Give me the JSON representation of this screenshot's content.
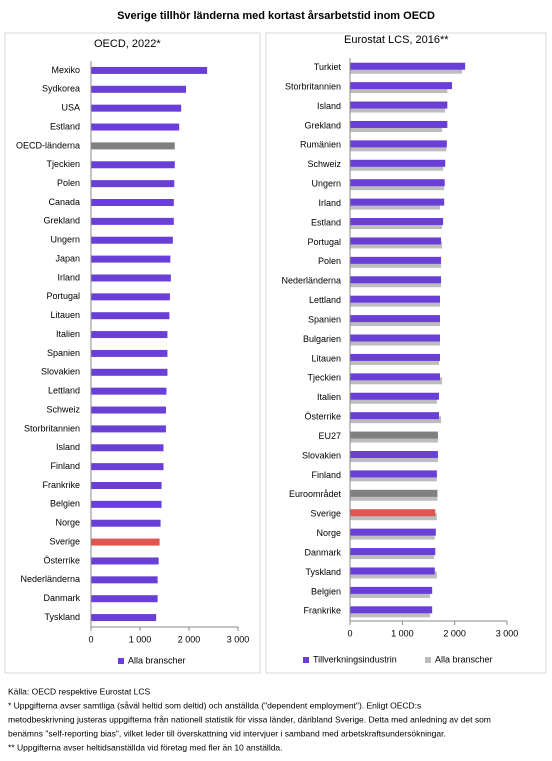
{
  "title": "Sverige tillhör länderna med kortast årsarbetstid inom OECD",
  "notes": [
    "Källa: OECD respektive Eurostat LCS",
    "* Uppgifterna avser samtliga (såväl heltid som deltid) och anställda (\"dependent employment\"). Enligt OECD:s",
    "metodbeskrivning justeras uppgifterna från nationell statistik för vissa länder, däribland Sverige. Detta med anledning av det som",
    "benämns \"self-reporting bias\", vilket leder till överskattning vid intervjuer i samband med arbetskraftsundersökningar.",
    "** Uppgifterna avser heltidsanställda vid företag med fler än 10 anställda."
  ],
  "chart_data": [
    {
      "type": "hbar",
      "subtitle": "OECD, 2022*",
      "categories": [
        "Mexiko",
        "Sydkorea",
        "USA",
        "Estland",
        "OECD-länderna",
        "Tjeckien",
        "Polen",
        "Canada",
        "Grekland",
        "Ungern",
        "Japan",
        "Irland",
        "Portugal",
        "Litauen",
        "Italien",
        "Spanien",
        "Slovakien",
        "Lettland",
        "Schweiz",
        "Storbritannien",
        "Island",
        "Finland",
        "Frankrike",
        "Belgien",
        "Norge",
        "Sverige",
        "Österrike",
        "Nederländerna",
        "Danmark",
        "Tyskland"
      ],
      "series": [
        {
          "name": "Alla branscher",
          "color": "#6a3fd8",
          "colors": [
            "#6a3fd8",
            "#6a3fd8",
            "#6a3fd8",
            "#6a3fd8",
            "#808080",
            "#6a3fd8",
            "#6a3fd8",
            "#6a3fd8",
            "#6a3fd8",
            "#6a3fd8",
            "#6a3fd8",
            "#6a3fd8",
            "#6a3fd8",
            "#6a3fd8",
            "#6a3fd8",
            "#6a3fd8",
            "#6a3fd8",
            "#6a3fd8",
            "#6a3fd8",
            "#6a3fd8",
            "#6a3fd8",
            "#6a3fd8",
            "#6a3fd8",
            "#6a3fd8",
            "#6a3fd8",
            "#e0554f",
            "#6a3fd8",
            "#6a3fd8",
            "#6a3fd8",
            "#6a3fd8"
          ],
          "values": [
            2370,
            1940,
            1840,
            1800,
            1710,
            1710,
            1700,
            1690,
            1690,
            1670,
            1620,
            1630,
            1610,
            1600,
            1560,
            1560,
            1560,
            1540,
            1530,
            1530,
            1480,
            1480,
            1440,
            1440,
            1420,
            1400,
            1380,
            1360,
            1360,
            1330
          ]
        }
      ],
      "xlim": [
        0,
        3000
      ],
      "xticks": [
        0,
        {
          "value": 1000,
          "label": "1 000"
        },
        {
          "value": 2000,
          "label": "2 000"
        },
        {
          "value": 3000,
          "label": "3 000"
        }
      ]
    },
    {
      "type": "hbar",
      "subtitle": "Eurostat LCS, 2016**",
      "categories": [
        "Turkiet",
        "Storbritannien",
        "Island",
        "Grekland",
        "Rumänien",
        "Schweiz",
        "Ungern",
        "Irland",
        "Estland",
        "Portugal",
        "Polen",
        "Nederländerna",
        "Lettland",
        "Spanien",
        "Bulgarien",
        "Litauen",
        "Tjeckien",
        "Italien",
        "Österrike",
        "EU27",
        "Slovakien",
        "Finland",
        "Euroområdet",
        "Sverige",
        "Norge",
        "Danmark",
        "Tyskland",
        "Belgien",
        "Frankrike"
      ],
      "series": [
        {
          "name": "Tillverkningsindustrin",
          "color": "#6a3fd8",
          "colors": [
            "#6a3fd8",
            "#6a3fd8",
            "#6a3fd8",
            "#6a3fd8",
            "#6a3fd8",
            "#6a3fd8",
            "#6a3fd8",
            "#6a3fd8",
            "#6a3fd8",
            "#6a3fd8",
            "#6a3fd8",
            "#6a3fd8",
            "#6a3fd8",
            "#6a3fd8",
            "#6a3fd8",
            "#6a3fd8",
            "#6a3fd8",
            "#6a3fd8",
            "#6a3fd8",
            "#808080",
            "#6a3fd8",
            "#6a3fd8",
            "#808080",
            "#e0554f",
            "#6a3fd8",
            "#6a3fd8",
            "#6a3fd8",
            "#6a3fd8",
            "#6a3fd8"
          ],
          "values": [
            2200,
            1950,
            1860,
            1860,
            1850,
            1820,
            1810,
            1800,
            1780,
            1740,
            1740,
            1740,
            1720,
            1720,
            1720,
            1720,
            1720,
            1700,
            1700,
            1680,
            1680,
            1660,
            1670,
            1630,
            1640,
            1630,
            1620,
            1570,
            1570
          ]
        },
        {
          "name": "Alla branscher",
          "color": "#bdbdbd",
          "values": [
            2140,
            1860,
            1820,
            1760,
            1840,
            1780,
            1800,
            1720,
            1760,
            1760,
            1740,
            1740,
            1720,
            1720,
            1720,
            1700,
            1760,
            1660,
            1740,
            1680,
            1680,
            1660,
            1670,
            1660,
            1620,
            1610,
            1660,
            1530,
            1530
          ]
        }
      ],
      "xlim": [
        0,
        3000
      ],
      "xticks": [
        0,
        {
          "value": 1000,
          "label": "1 000"
        },
        {
          "value": 2000,
          "label": "2 000"
        },
        {
          "value": 3000,
          "label": "3 000"
        }
      ]
    }
  ]
}
